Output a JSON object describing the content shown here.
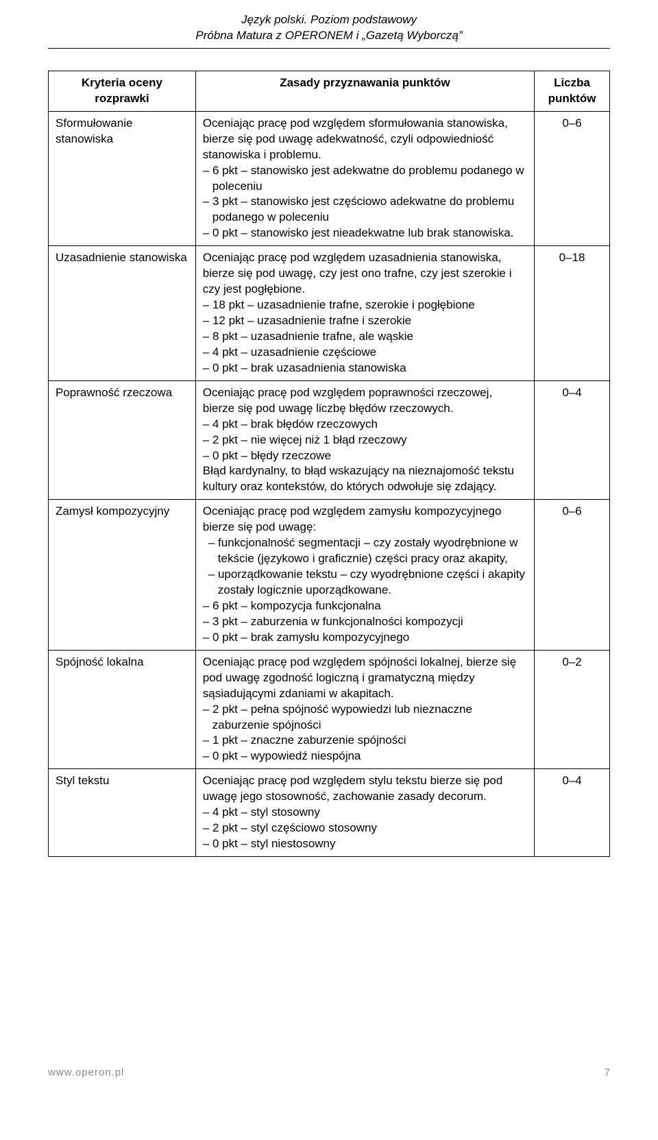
{
  "header": {
    "line1": "Język polski. Poziom podstawowy",
    "line2": "Próbna Matura z OPERONEM i „Gazetą Wyborczą”"
  },
  "table": {
    "headers": {
      "col1": "Kryteria oceny rozprawki",
      "col2": "Zasady przyznawania punktów",
      "col3": "Liczba punktów"
    },
    "rows": [
      {
        "criterion": "Sformułowanie stanowiska",
        "content": [
          {
            "cls": "",
            "text": "Oceniając pracę pod względem sformułowania stanowiska, bierze się pod uwagę adekwatność, czyli odpowiedniość stanowiska i problemu."
          },
          {
            "cls": "indent1",
            "text": "– 6 pkt – stanowisko jest adekwatne do problemu podanego w poleceniu"
          },
          {
            "cls": "indent1",
            "text": "– 3 pkt – stanowisko jest częściowo adekwatne do problemu podanego w poleceniu"
          },
          {
            "cls": "indent1",
            "text": "– 0 pkt – stanowisko jest nieadekwatne lub brak stanowiska."
          }
        ],
        "points": "0–6"
      },
      {
        "criterion": "Uzasadnienie stanowiska",
        "content": [
          {
            "cls": "",
            "text": "Oceniając pracę pod względem uzasadnienia stanowiska, bierze się pod uwagę, czy jest ono trafne, czy jest szerokie i czy jest pogłębione."
          },
          {
            "cls": "indent1",
            "text": "– 18 pkt – uzasadnienie trafne, szerokie i pogłębione"
          },
          {
            "cls": "indent1",
            "text": "– 12 pkt – uzasadnienie trafne i szerokie"
          },
          {
            "cls": "indent1",
            "text": "– 8 pkt – uzasadnienie trafne, ale wąskie"
          },
          {
            "cls": "indent1",
            "text": "– 4 pkt – uzasadnienie częściowe"
          },
          {
            "cls": "indent1",
            "text": "– 0 pkt – brak uzasadnienia stanowiska"
          }
        ],
        "points": "0–18"
      },
      {
        "criterion": "Poprawność rzeczowa",
        "content": [
          {
            "cls": "",
            "text": "Oceniając pracę pod względem poprawności rzeczowej, bierze się pod uwagę liczbę błędów rzeczowych."
          },
          {
            "cls": "indent1",
            "text": "– 4 pkt – brak błędów rzeczowych"
          },
          {
            "cls": "indent1",
            "text": "– 2 pkt – nie więcej niż 1 błąd rzeczowy"
          },
          {
            "cls": "indent1",
            "text": "– 0 pkt – błędy rzeczowe"
          },
          {
            "cls": "",
            "text": "Błąd kardynalny, to błąd wskazujący na nieznajomość tekstu kultury oraz kontekstów, do których odwołuje się zdający."
          }
        ],
        "points": "0–4"
      },
      {
        "criterion": "Zamysł kompozycyjny",
        "content": [
          {
            "cls": "",
            "text": "Oceniając pracę pod względem zamysłu kompozycyjnego bierze się pod uwagę:"
          },
          {
            "cls": "indent-dash",
            "text": "– funkcjonalność segmentacji – czy zostały wyodrębnione w tekście (językowo i graficznie) części pracy oraz akapity,"
          },
          {
            "cls": "indent-dash",
            "text": "– uporządkowanie tekstu – czy wyodrębnione części i akapity zostały logicznie uporządkowane."
          },
          {
            "cls": "indent1",
            "text": "– 6 pkt – kompozycja funkcjonalna"
          },
          {
            "cls": "indent1",
            "text": "– 3 pkt – zaburzenia w funkcjonalności kompozycji"
          },
          {
            "cls": "indent1",
            "text": "– 0 pkt – brak zamysłu kompozycyjnego"
          }
        ],
        "points": "0–6"
      },
      {
        "criterion": "Spójność lokalna",
        "content": [
          {
            "cls": "",
            "text": "Oceniając pracę pod względem spójności lokalnej, bierze się pod uwagę zgodność logiczną i gramatyczną między sąsiadującymi zdaniami w akapitach."
          },
          {
            "cls": "indent1",
            "text": "– 2 pkt – pełna spójność wypowiedzi lub nieznaczne zaburzenie spójności"
          },
          {
            "cls": "indent1",
            "text": "– 1 pkt – znaczne zaburzenie spójności"
          },
          {
            "cls": "indent1",
            "text": "– 0 pkt – wypowiedź niespójna"
          }
        ],
        "points": "0–2"
      },
      {
        "criterion": "Styl tekstu",
        "content": [
          {
            "cls": "",
            "text": "Oceniając pracę pod względem stylu tekstu bierze się pod uwagę jego stosowność, zachowanie zasady decorum."
          },
          {
            "cls": "indent1",
            "text": "– 4 pkt – styl stosowny"
          },
          {
            "cls": "indent1",
            "text": "– 2 pkt – styl częściowo stosowny"
          },
          {
            "cls": "indent1",
            "text": "– 0 pkt – styl niestosowny"
          }
        ],
        "points": "0–4"
      }
    ]
  },
  "footer": {
    "url": "www.operon.pl",
    "page": "7"
  }
}
